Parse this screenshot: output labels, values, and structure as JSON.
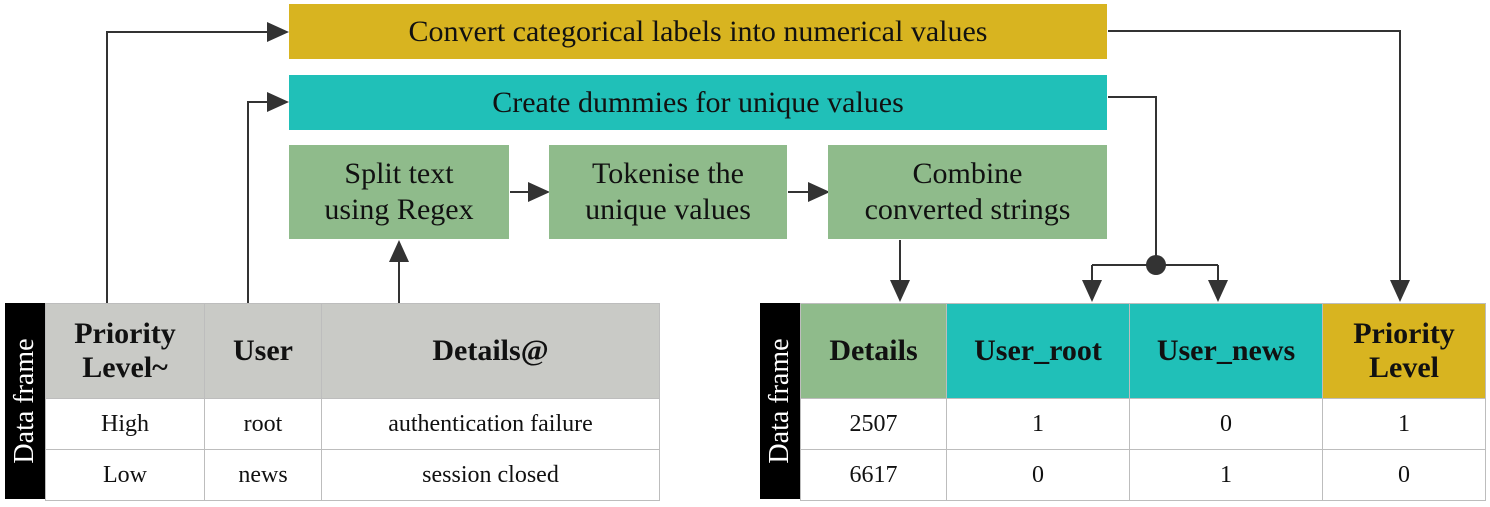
{
  "steps": {
    "convert_labels": "Convert categorical labels into numerical values",
    "create_dummies": "Create dummies for unique values",
    "split_text": [
      "Split text",
      "using Regex"
    ],
    "tokenise": [
      "Tokenise the",
      "unique values"
    ],
    "combine": [
      "Combine",
      "converted strings"
    ]
  },
  "input_frame": {
    "tag": "Data frame",
    "headers": [
      [
        "Priority",
        "Level~"
      ],
      [
        "User"
      ],
      [
        "Details@"
      ]
    ],
    "rows": [
      [
        "High",
        "root",
        "authentication failure"
      ],
      [
        "Low",
        "news",
        "session closed"
      ]
    ]
  },
  "output_frame": {
    "tag": "Data frame",
    "headers": [
      [
        "Details"
      ],
      [
        "User_root"
      ],
      [
        "User_news"
      ],
      [
        "Priority",
        "Level"
      ]
    ],
    "rows": [
      [
        "2507",
        "1",
        "0",
        "1"
      ],
      [
        "6617",
        "0",
        "1",
        "0"
      ]
    ]
  },
  "colors": {
    "convert_labels": "#d8b420",
    "create_dummies": "#20c0b8",
    "text_steps": "#8fbb8b",
    "header_gray": "#c9cac6"
  }
}
